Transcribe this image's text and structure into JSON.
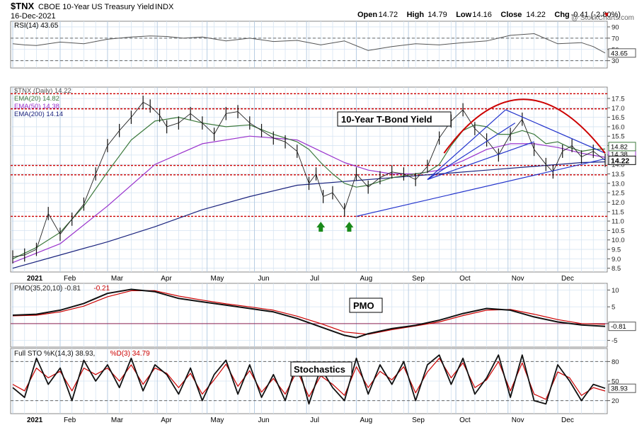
{
  "header": {
    "symbol": "$TNX",
    "name": "CBOE 10-Year US Treasury Yield",
    "exchange": "INDX",
    "date": "16-Dec-2021",
    "quote": [
      {
        "label": "Open",
        "value": "14.72"
      },
      {
        "label": "High",
        "value": "14.79"
      },
      {
        "label": "Low",
        "value": "14.16"
      },
      {
        "label": "Close",
        "value": "14.22"
      },
      {
        "label": "Chg",
        "value": "-0.41 (-2.80%)"
      }
    ],
    "watermark": "@ StockCharts.com",
    "up_color": "#009900",
    "down_color": "#cc0000"
  },
  "chart_data": [
    {
      "type": "line",
      "panel": "RSI",
      "legend": "RSI(14) 43.65",
      "ylim": [
        17,
        100
      ],
      "ticks": [
        30,
        50,
        70,
        90
      ],
      "reference_lines": [
        30,
        70
      ],
      "last_value_label": "43.65",
      "series": [
        {
          "name": "RSI(14)",
          "color": "#555555",
          "x": [
            0,
            5,
            10,
            20,
            30,
            40,
            50,
            58,
            65,
            72,
            80,
            90,
            100,
            110,
            120,
            130,
            140,
            150,
            160,
            170,
            180,
            190,
            200,
            210,
            220,
            230,
            240,
            245,
            250
          ],
          "y": [
            60,
            58,
            57,
            63,
            60,
            68,
            72,
            74,
            73,
            70,
            72,
            65,
            70,
            64,
            66,
            58,
            65,
            48,
            55,
            60,
            58,
            62,
            65,
            75,
            78,
            60,
            62,
            55,
            43.65
          ]
        }
      ]
    },
    {
      "type": "line",
      "panel": "Price",
      "legend": [
        {
          "text": "$TNX (Daily) 14.22",
          "color": "#555555"
        },
        {
          "text": "EMA(20) 14.82",
          "color": "#3d7a3d"
        },
        {
          "text": "EMA(50) 14.38",
          "color": "#9932cc"
        },
        {
          "text": "EMA(200) 14.14",
          "color": "#1a237e"
        }
      ],
      "annotation": "10-Year T-Bond Yield",
      "ylim": [
        8.3,
        18.1
      ],
      "ticks": [
        8.5,
        9.0,
        9.5,
        10.0,
        10.5,
        11.0,
        11.5,
        12.0,
        12.5,
        13.0,
        13.5,
        14.0,
        14.5,
        15.0,
        15.5,
        16.0,
        16.5,
        17.0,
        17.5
      ],
      "x_months": [
        "2021",
        "Feb",
        "Mar",
        "Apr",
        "May",
        "Jun",
        "Jul",
        "Aug",
        "Sep",
        "Oct",
        "Nov",
        "Dec"
      ],
      "month_start_index": [
        0,
        20,
        40,
        61,
        82,
        102,
        124,
        145,
        167,
        187,
        209,
        230
      ],
      "horizontal_levels": [
        11.25,
        13.45,
        13.95,
        16.95,
        17.75
      ],
      "last_value_labels": [
        "14.38",
        "14.22",
        "14.82"
      ],
      "series": [
        {
          "name": "$TNX (Daily)",
          "color": "#222222",
          "x": [
            0,
            5,
            10,
            15,
            20,
            25,
            30,
            35,
            40,
            45,
            50,
            55,
            58,
            62,
            65,
            70,
            75,
            80,
            85,
            90,
            95,
            100,
            105,
            110,
            115,
            120,
            125,
            128,
            131,
            135,
            140,
            145,
            150,
            155,
            160,
            165,
            170,
            175,
            180,
            185,
            190,
            195,
            200,
            205,
            210,
            215,
            220,
            225,
            228,
            232,
            236,
            240,
            245,
            250
          ],
          "y": [
            9.1,
            9.2,
            9.5,
            11.4,
            10.3,
            11.1,
            11.9,
            13.5,
            15.0,
            15.8,
            16.5,
            17.3,
            17.1,
            16.6,
            16.0,
            16.2,
            16.7,
            16.2,
            15.6,
            16.7,
            16.8,
            16.2,
            15.8,
            15.4,
            15.2,
            14.7,
            13.0,
            13.5,
            12.3,
            12.5,
            11.6,
            13.5,
            12.8,
            13.3,
            13.6,
            13.5,
            13.2,
            13.9,
            15.4,
            16.3,
            16.9,
            15.9,
            15.3,
            14.5,
            15.6,
            16.4,
            14.8,
            14.0,
            13.6,
            14.7,
            15.0,
            14.4,
            14.7,
            14.22
          ]
        },
        {
          "name": "EMA(20)",
          "color": "#3d7a3d",
          "x": [
            0,
            10,
            20,
            30,
            40,
            50,
            60,
            70,
            80,
            90,
            100,
            110,
            120,
            125,
            130,
            135,
            140,
            145,
            150,
            155,
            160,
            165,
            170,
            175,
            180,
            185,
            190,
            195,
            200,
            205,
            210,
            215,
            220,
            225,
            230,
            235,
            240,
            245,
            250
          ],
          "y": [
            9.0,
            9.6,
            10.4,
            11.8,
            13.6,
            15.3,
            16.3,
            16.5,
            16.2,
            16.0,
            16.1,
            15.6,
            15.2,
            14.8,
            14.1,
            13.5,
            13.0,
            12.8,
            12.9,
            13.1,
            13.3,
            13.4,
            13.5,
            13.6,
            14.0,
            15.0,
            15.8,
            16.1,
            16.0,
            15.6,
            15.6,
            15.8,
            15.6,
            15.1,
            15.2,
            14.9,
            14.7,
            14.8,
            14.82
          ]
        },
        {
          "name": "EMA(50)",
          "color": "#9932cc",
          "x": [
            0,
            20,
            40,
            60,
            80,
            100,
            120,
            130,
            140,
            150,
            160,
            170,
            180,
            190,
            200,
            210,
            220,
            230,
            240,
            250
          ],
          "y": [
            8.8,
            9.8,
            11.8,
            14.0,
            15.1,
            15.5,
            15.3,
            14.7,
            14.1,
            13.7,
            13.5,
            13.5,
            13.7,
            14.2,
            14.8,
            15.1,
            15.1,
            14.9,
            14.6,
            14.38
          ]
        },
        {
          "name": "EMA(200)",
          "color": "#1a237e",
          "x": [
            0,
            20,
            40,
            60,
            80,
            100,
            120,
            140,
            160,
            180,
            200,
            220,
            240,
            250
          ],
          "y": [
            8.5,
            9.2,
            9.9,
            10.7,
            11.6,
            12.3,
            12.9,
            13.1,
            13.3,
            13.5,
            13.7,
            13.9,
            14.1,
            14.14
          ]
        }
      ]
    },
    {
      "type": "line",
      "panel": "PMO",
      "legend": [
        {
          "text": "PMO(35,20,10) -0.81",
          "color": "#222222"
        },
        {
          "text": "-0.21",
          "color": "#cc0000"
        }
      ],
      "annotation": "PMO",
      "ylim": [
        -7,
        12
      ],
      "ticks": [
        -5,
        0,
        5,
        10
      ],
      "reference_lines": [
        0
      ],
      "last_value_label": "-0.81",
      "series": [
        {
          "name": "PMO(35,20,10)",
          "color": "#111111",
          "x": [
            0,
            10,
            20,
            30,
            40,
            50,
            60,
            70,
            80,
            90,
            100,
            110,
            120,
            130,
            140,
            145,
            150,
            160,
            170,
            180,
            190,
            200,
            210,
            220,
            230,
            240,
            245,
            250
          ],
          "y": [
            2.5,
            2.8,
            4.0,
            6.0,
            9.0,
            10.2,
            9.5,
            7.5,
            6.5,
            5.5,
            4.5,
            3.5,
            1.5,
            -1.0,
            -3.5,
            -4.2,
            -3.0,
            -1.5,
            -0.5,
            1.0,
            3.0,
            4.5,
            4.0,
            2.0,
            0.5,
            -0.4,
            -0.6,
            -0.81
          ]
        },
        {
          "name": "Signal",
          "color": "#cc0000",
          "x": [
            0,
            10,
            20,
            30,
            40,
            50,
            60,
            70,
            80,
            90,
            100,
            110,
            120,
            130,
            140,
            150,
            160,
            170,
            180,
            190,
            200,
            210,
            220,
            230,
            240,
            250
          ],
          "y": [
            2.3,
            2.5,
            3.5,
            5.2,
            8.0,
            9.8,
            9.8,
            8.2,
            7.0,
            5.9,
            5.0,
            4.0,
            2.2,
            0.0,
            -2.5,
            -3.2,
            -1.8,
            -0.7,
            0.5,
            2.4,
            4.0,
            4.2,
            2.8,
            1.2,
            0.0,
            -0.21
          ]
        }
      ]
    },
    {
      "type": "line",
      "panel": "Stochastics",
      "legend": [
        {
          "text": "Full STO %K(14,3) 38.93,",
          "color": "#111111"
        },
        {
          "text": "%D(3) 34.79",
          "color": "#cc0000"
        }
      ],
      "annotation": "Stochastics",
      "ylim": [
        0,
        100
      ],
      "ticks": [
        20,
        50,
        80
      ],
      "reference_lines": [
        20,
        80
      ],
      "last_value_label": "38.93",
      "series": [
        {
          "name": "%K",
          "color": "#111111",
          "x": [
            0,
            5,
            10,
            15,
            20,
            25,
            30,
            35,
            40,
            45,
            50,
            55,
            60,
            65,
            70,
            75,
            80,
            85,
            90,
            95,
            100,
            105,
            110,
            115,
            120,
            125,
            130,
            135,
            140,
            145,
            150,
            155,
            160,
            165,
            170,
            175,
            180,
            185,
            190,
            195,
            200,
            205,
            210,
            215,
            220,
            225,
            230,
            235,
            240,
            245,
            250
          ],
          "y": [
            40,
            25,
            85,
            45,
            70,
            20,
            82,
            50,
            75,
            40,
            85,
            35,
            75,
            60,
            30,
            70,
            20,
            60,
            82,
            30,
            75,
            25,
            60,
            20,
            80,
            15,
            70,
            40,
            20,
            85,
            30,
            75,
            45,
            80,
            20,
            75,
            90,
            45,
            85,
            30,
            55,
            90,
            25,
            90,
            20,
            15,
            75,
            50,
            20,
            45,
            38.93
          ]
        },
        {
          "name": "%D",
          "color": "#cc0000",
          "x": [
            0,
            5,
            10,
            15,
            20,
            25,
            30,
            35,
            40,
            45,
            50,
            55,
            60,
            65,
            70,
            75,
            80,
            85,
            90,
            95,
            100,
            105,
            110,
            115,
            120,
            125,
            130,
            135,
            140,
            145,
            150,
            155,
            160,
            165,
            170,
            175,
            180,
            185,
            190,
            195,
            200,
            205,
            210,
            215,
            220,
            225,
            230,
            235,
            240,
            245,
            250
          ],
          "y": [
            45,
            35,
            70,
            55,
            65,
            35,
            70,
            60,
            70,
            50,
            75,
            45,
            70,
            62,
            40,
            62,
            30,
            52,
            76,
            42,
            66,
            33,
            54,
            30,
            66,
            26,
            58,
            45,
            28,
            72,
            40,
            65,
            52,
            72,
            32,
            64,
            85,
            55,
            78,
            40,
            52,
            80,
            35,
            78,
            30,
            22,
            64,
            55,
            28,
            40,
            34.79
          ]
        }
      ]
    }
  ]
}
